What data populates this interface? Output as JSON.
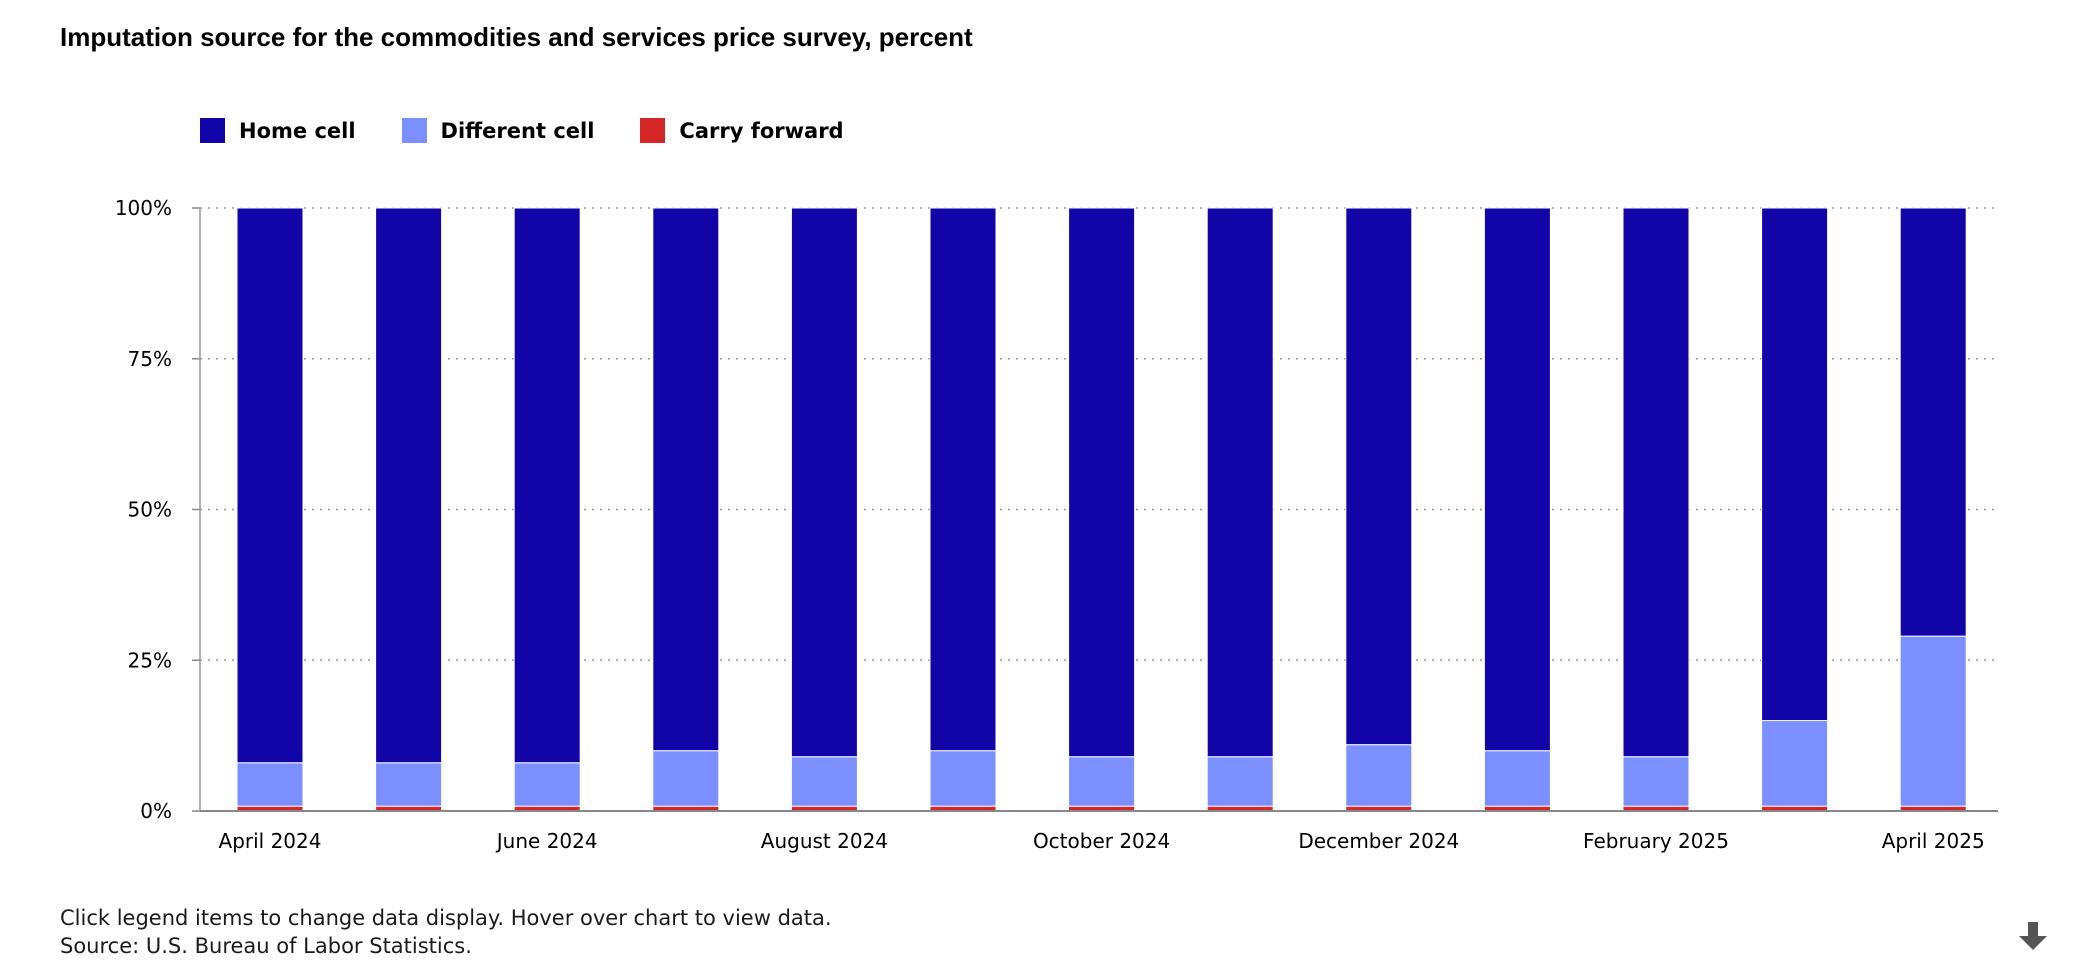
{
  "title": "Imputation source for the commodities and services price survey, percent",
  "notes": {
    "instruction": "Click legend items to change data display. Hover over chart to view data.",
    "source": "Source: U.S. Bureau of Labor Statistics."
  },
  "icons": {
    "download": "download-arrow-icon"
  },
  "chart_data": {
    "type": "bar",
    "stacked": true,
    "percent_stacked": true,
    "categories": [
      "April 2024",
      "May 2024",
      "June 2024",
      "July 2024",
      "August 2024",
      "September 2024",
      "October 2024",
      "November 2024",
      "December 2024",
      "January 2025",
      "February 2025",
      "March 2025",
      "April 2025"
    ],
    "x_tick_labels": [
      "April 2024",
      "June 2024",
      "August 2024",
      "October 2024",
      "December 2024",
      "February 2025",
      "April 2025"
    ],
    "y_tick_labels": [
      "0%",
      "25%",
      "50%",
      "75%",
      "100%"
    ],
    "ylim": [
      0,
      100
    ],
    "grid": true,
    "legend_position": "top-left",
    "series": [
      {
        "name": "Carry forward",
        "color": "#d62728",
        "values": [
          0.8,
          0.8,
          0.8,
          0.8,
          0.8,
          0.8,
          0.8,
          0.8,
          0.8,
          0.8,
          0.8,
          0.8,
          0.8
        ]
      },
      {
        "name": "Different cell",
        "color": "#7b8fff",
        "values": [
          7.2,
          7.2,
          7.2,
          9.2,
          8.2,
          9.2,
          8.2,
          8.2,
          10.2,
          9.2,
          8.2,
          14.2,
          28.2
        ]
      },
      {
        "name": "Home cell",
        "color": "#1105a8",
        "values": [
          92,
          92,
          92,
          90,
          91,
          90,
          91,
          91,
          89,
          90,
          91,
          85,
          71
        ]
      }
    ]
  }
}
